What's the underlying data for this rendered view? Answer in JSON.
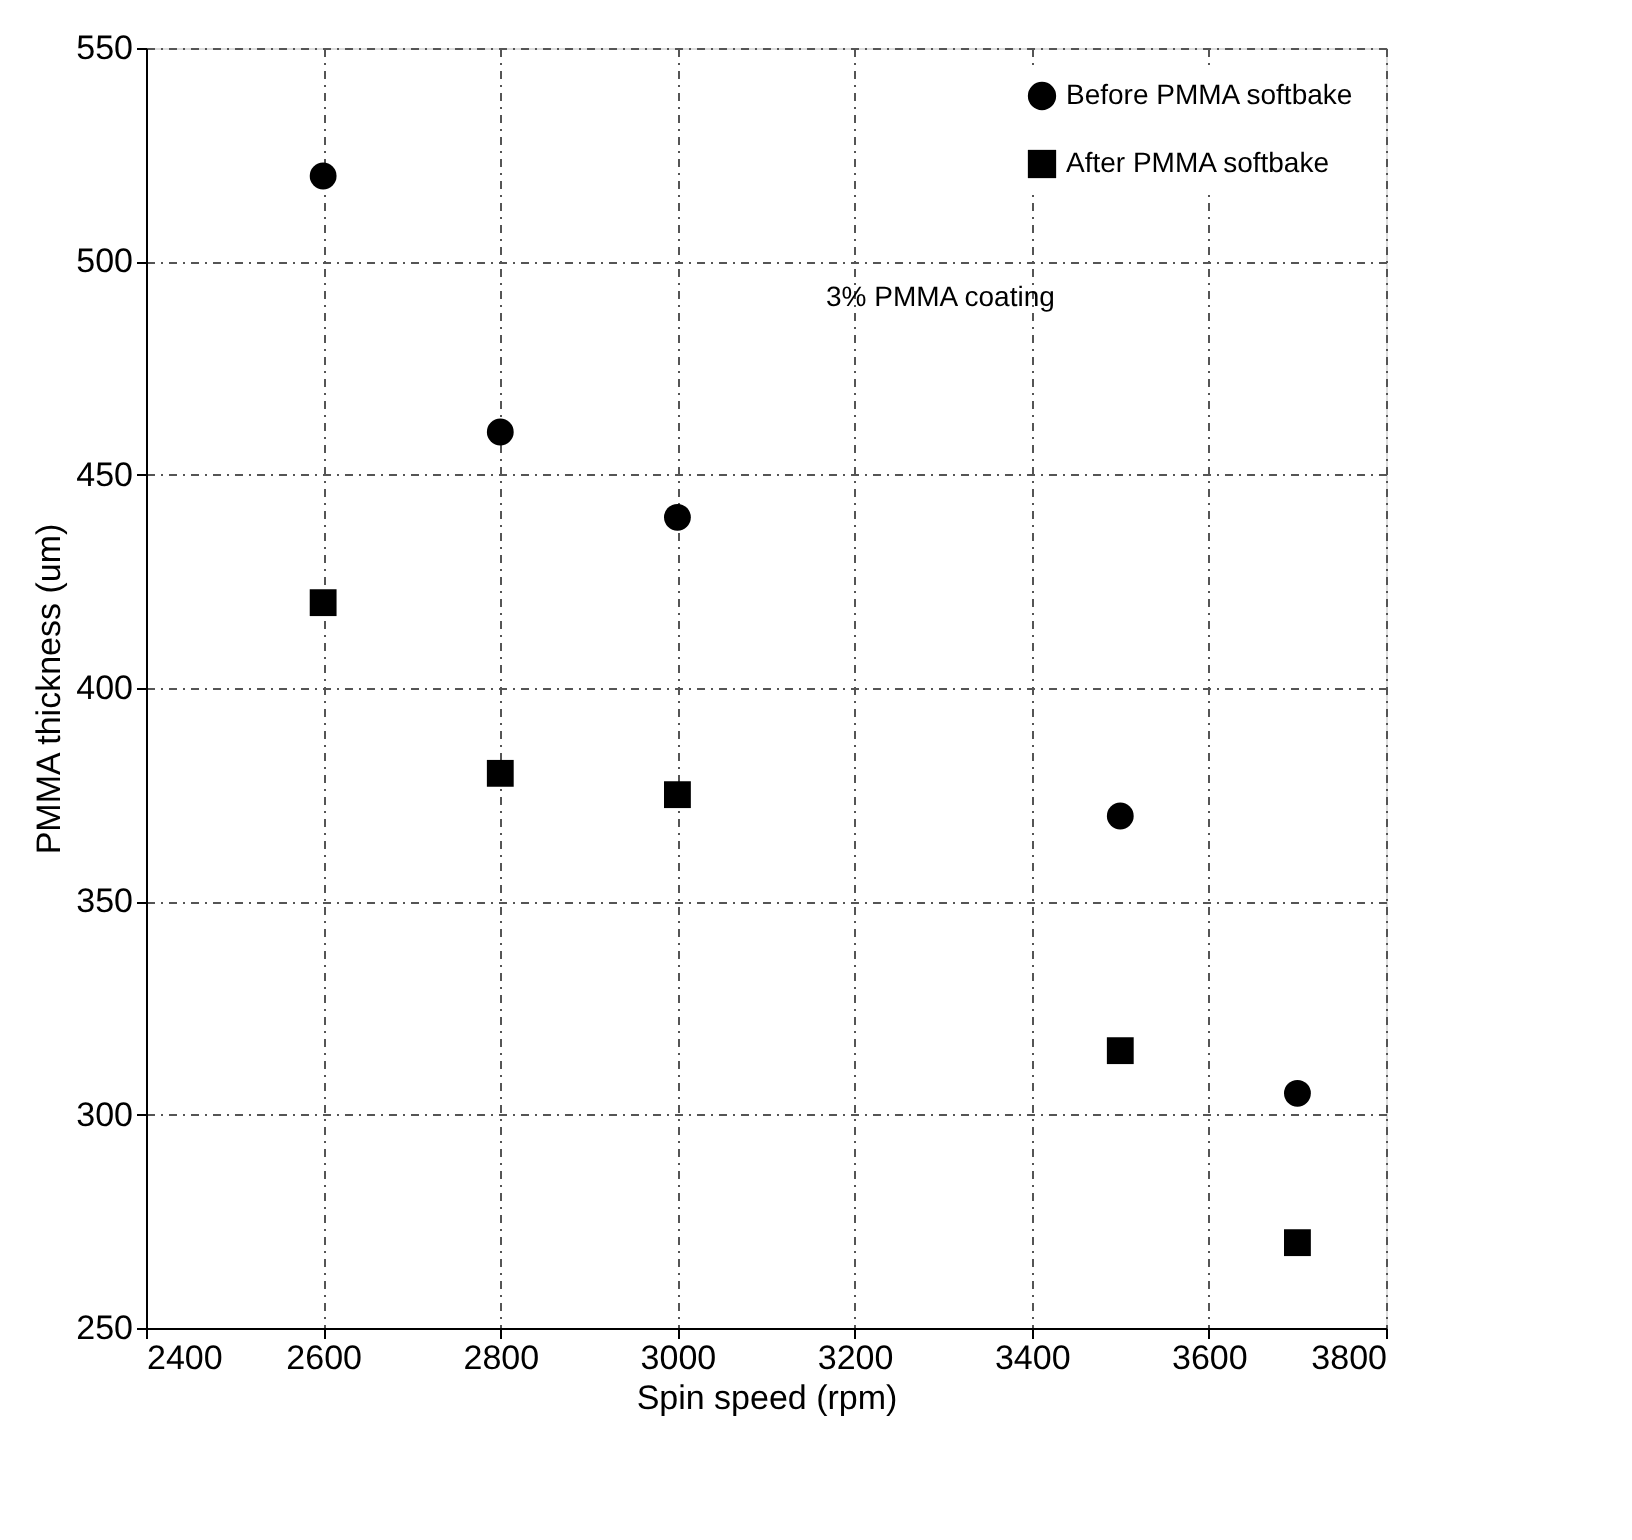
{
  "chart_data": {
    "type": "scatter",
    "xlabel": "Spin speed (rpm)",
    "ylabel": "PMMA thickness (um)",
    "x": [
      2600,
      2800,
      3000,
      3500,
      3700
    ],
    "series": [
      {
        "name": "Before PMMA softbake",
        "color": "#000000",
        "marker": "circle",
        "values": [
          520,
          460,
          440,
          370,
          305
        ]
      },
      {
        "name": "After PMMA softbake",
        "color": "#000000",
        "marker": "square",
        "values": [
          420,
          380,
          375,
          315,
          270
        ]
      }
    ],
    "xlim": [
      2400,
      3800
    ],
    "xticks": [
      2400,
      2600,
      2800,
      3000,
      3200,
      3400,
      3600,
      3800
    ],
    "ylim": [
      250,
      550
    ],
    "yticks": [
      250,
      300,
      350,
      400,
      450,
      500,
      550
    ],
    "grid": true,
    "legend": "top right",
    "annotations": [
      "3% PMMA coating"
    ]
  }
}
